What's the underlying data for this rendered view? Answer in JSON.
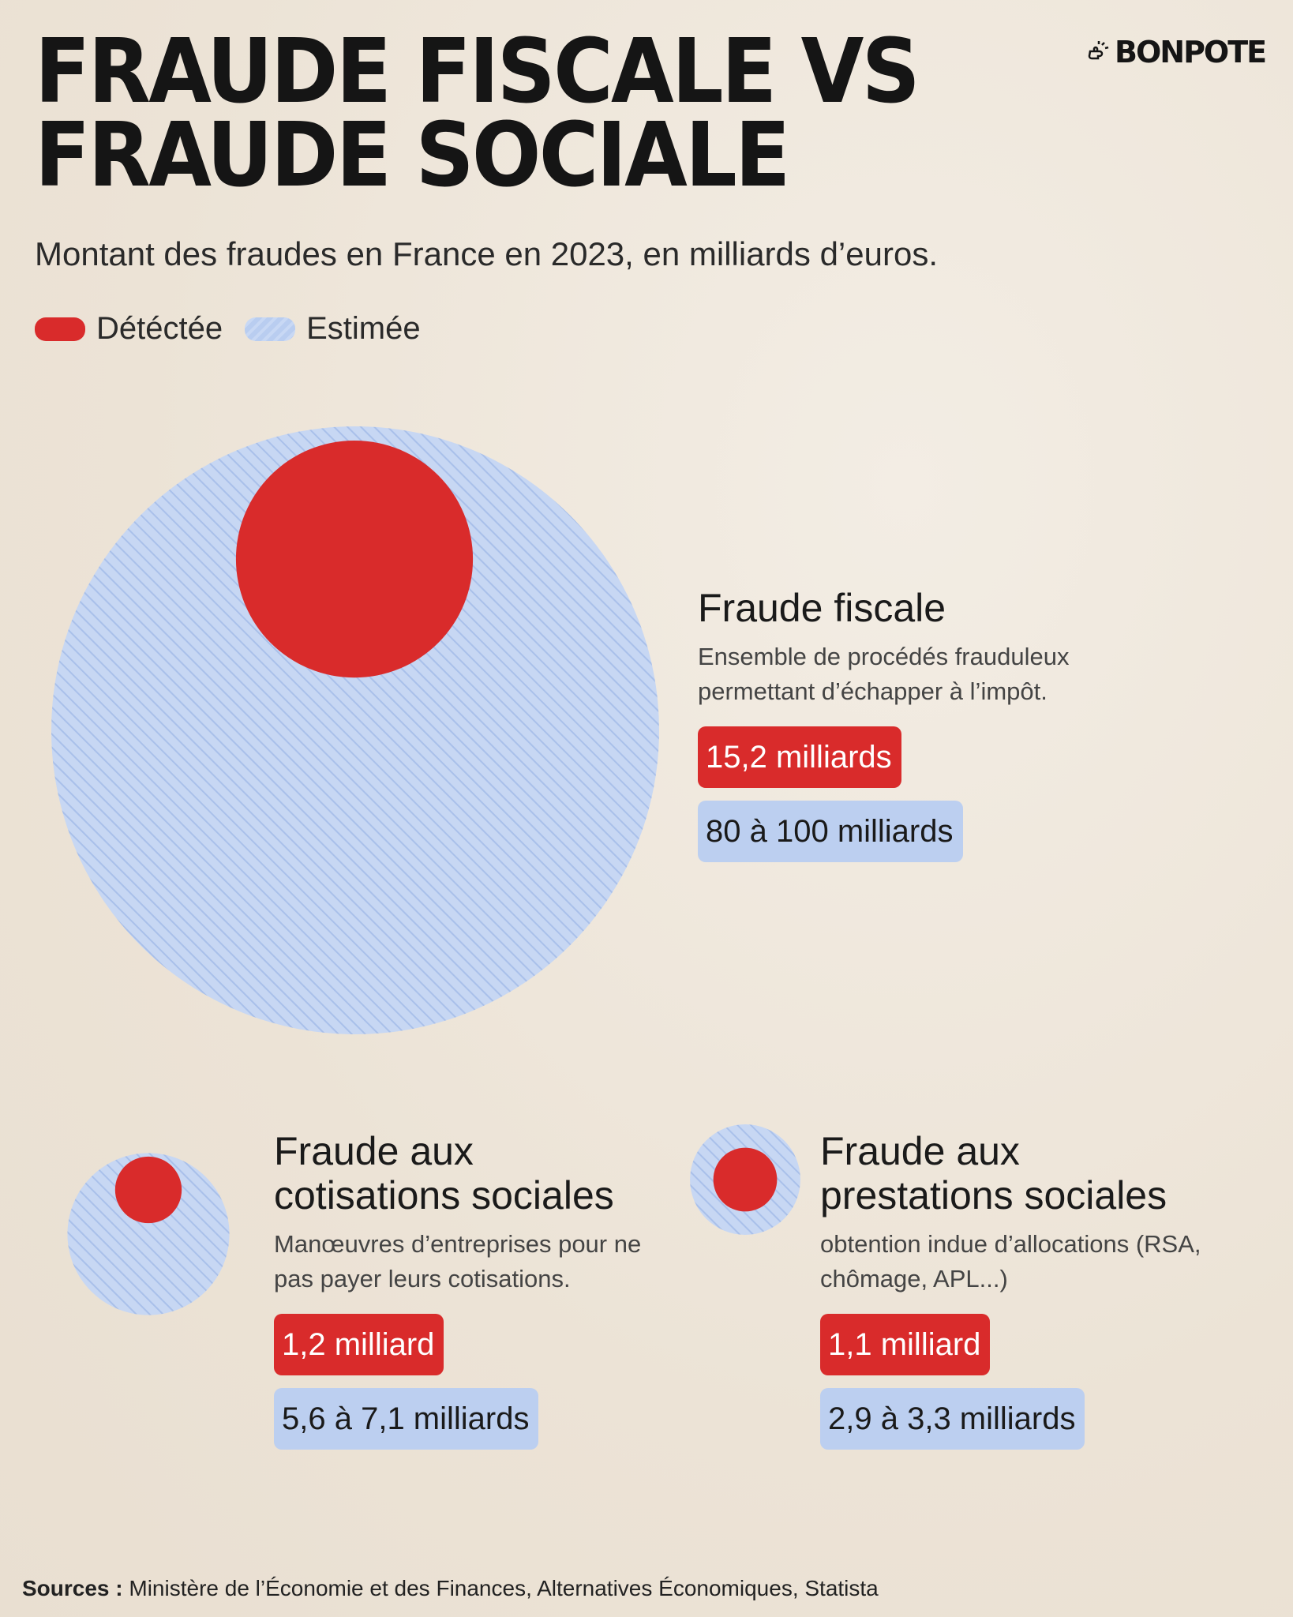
{
  "title_line1": "FRAUDE FISCALE VS",
  "title_line2": "FRAUDE SOCIALE",
  "brand": "BONPOTE",
  "subtitle": "Montant des fraudes en France en 2023, en milliards d’euros.",
  "legend": {
    "detected": "Détéctée",
    "estimated": "Estimée"
  },
  "colors": {
    "detected": "#d92b2b",
    "estimated": "#bccff0",
    "background": "#efe7dc"
  },
  "sources_label": "Sources :",
  "sources_text": "Ministère de l’Économie et des Finances, Alternatives Économiques, Statista",
  "chart_data": {
    "type": "bubble",
    "unit": "milliards d’euros",
    "items": [
      {
        "name": "Fraude fiscale",
        "description": "Ensemble de procédés frauduleux permettant d’échapper à l’impôt.",
        "detected": 15.2,
        "estimated_min": 80,
        "estimated_max": 100,
        "detected_label": "15,2 milliards",
        "estimated_label": "80 à 100 milliards"
      },
      {
        "name": "Fraude aux cotisations sociales",
        "description": "Manœuvres d’entreprises pour ne pas payer leurs cotisations.",
        "detected": 1.2,
        "estimated_min": 5.6,
        "estimated_max": 7.1,
        "detected_label": "1,2 milliard",
        "estimated_label": "5,6 à 7,1 milliards"
      },
      {
        "name": "Fraude aux prestations sociales",
        "description": "obtention indue d’allocations (RSA, chômage, APL...)",
        "detected": 1.1,
        "estimated_min": 2.9,
        "estimated_max": 3.3,
        "detected_label": "1,1 milliard",
        "estimated_label": "2,9 à 3,3 milliards"
      }
    ]
  }
}
